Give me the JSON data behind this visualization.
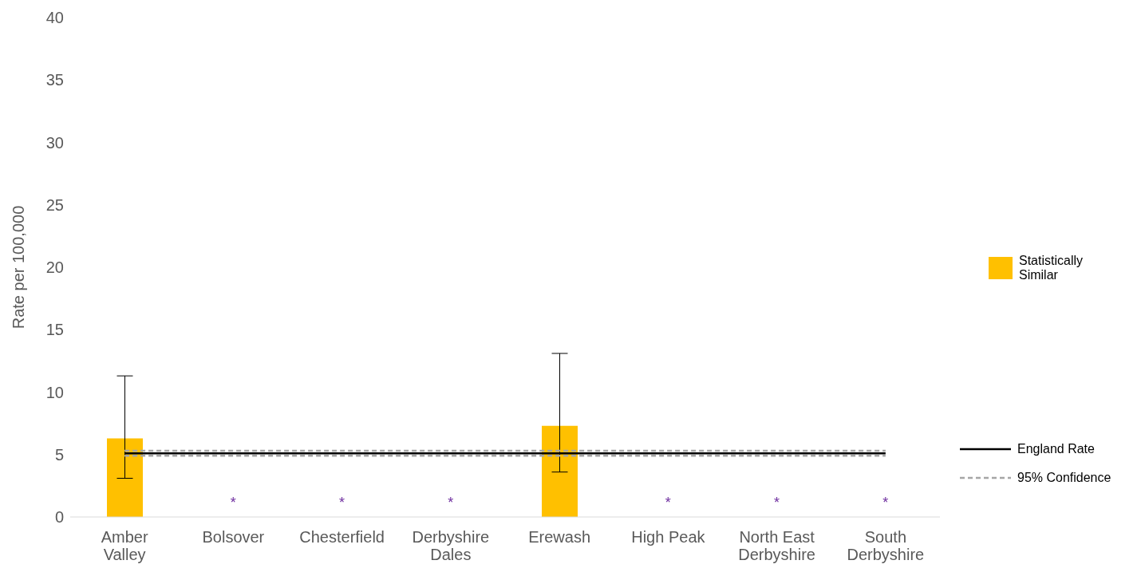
{
  "chart_data": {
    "type": "bar",
    "ylabel": "Rate per 100,000",
    "categories": [
      "Amber Valley",
      "Bolsover",
      "Chesterfield",
      "Derbyshire Dales",
      "Erewash",
      "High Peak",
      "North East Derbyshire",
      "South Derbyshire"
    ],
    "series": [
      {
        "name": "Statistically Similar",
        "color": "#ffc000",
        "values": [
          6.3,
          null,
          null,
          null,
          7.3,
          null,
          null,
          null
        ],
        "errors": [
          [
            3.1,
            11.3
          ],
          null,
          null,
          null,
          [
            3.6,
            13.1
          ],
          null,
          null,
          null
        ]
      },
      {
        "name": "England Rate",
        "type": "line",
        "color": "#000000",
        "line_style": "solid",
        "values": [
          5.1,
          5.1,
          5.1,
          5.1,
          5.1,
          5.1,
          5.1,
          5.1
        ]
      },
      {
        "name": "95% Confidence",
        "type": "line",
        "color": "#a6a6a6",
        "line_style": "dashed",
        "values": [
          5.3,
          5.3,
          5.3,
          5.3,
          5.3,
          5.3,
          5.3,
          5.3
        ]
      },
      {
        "type": "line",
        "color": "#a6a6a6",
        "line_style": "dashed",
        "values": [
          4.9,
          4.9,
          4.9,
          4.9,
          4.9,
          4.9,
          4.9,
          4.9
        ]
      }
    ],
    "annotations": [
      "*",
      "*",
      "*",
      "*",
      "*",
      "*"
    ],
    "ylim": [
      0,
      40
    ],
    "yticks": [
      0,
      5,
      10,
      15,
      20,
      25,
      30,
      35,
      40
    ],
    "grid": false,
    "legend": "right",
    "marker": "none"
  }
}
